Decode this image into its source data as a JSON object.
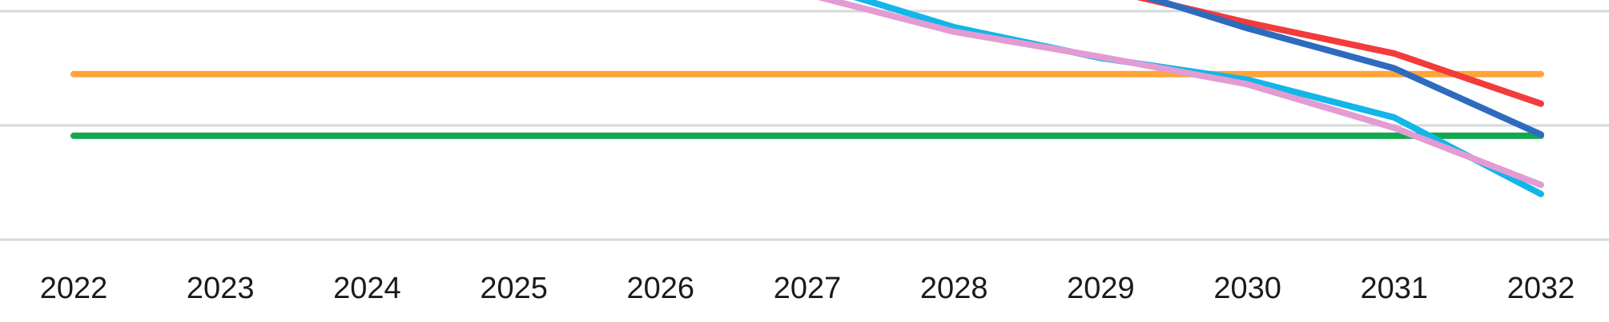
{
  "chart_data": {
    "type": "line",
    "categories": [
      "2022",
      "2023",
      "2024",
      "2025",
      "2026",
      "2027",
      "2028",
      "2029",
      "2030",
      "2031",
      "2032"
    ],
    "x": [
      2022,
      2023,
      2024,
      2025,
      2026,
      2027,
      2028,
      2029,
      2030,
      2031,
      2032
    ],
    "ylim": [
      0,
      2.1
    ],
    "gridlines": [
      0,
      1,
      2
    ],
    "grid": true,
    "series": [
      {
        "color": "#FFA43A",
        "values": [
          1.45,
          1.45,
          1.45,
          1.45,
          1.45,
          1.45,
          1.45,
          1.45,
          1.45,
          1.45,
          1.45
        ]
      },
      {
        "color": "#12A84E",
        "values": [
          0.91,
          0.91,
          0.91,
          0.91,
          0.91,
          0.91,
          0.91,
          0.91,
          0.91,
          0.91,
          0.91
        ]
      },
      {
        "color": "#F23B3B",
        "values": [
          null,
          null,
          null,
          null,
          null,
          null,
          null,
          2.2,
          1.9,
          1.63,
          1.19
        ]
      },
      {
        "color": "#2E6BBE",
        "values": [
          null,
          null,
          null,
          null,
          null,
          null,
          null,
          2.25,
          1.85,
          1.5,
          0.92
        ]
      },
      {
        "color": "#12B6E8",
        "values": [
          null,
          null,
          null,
          null,
          null,
          2.25,
          1.86,
          1.59,
          1.4,
          1.07,
          0.4
        ]
      },
      {
        "color": "#E39BD3",
        "values": [
          null,
          null,
          null,
          null,
          null,
          2.15,
          1.82,
          1.6,
          1.36,
          0.98,
          0.48
        ]
      }
    ]
  }
}
